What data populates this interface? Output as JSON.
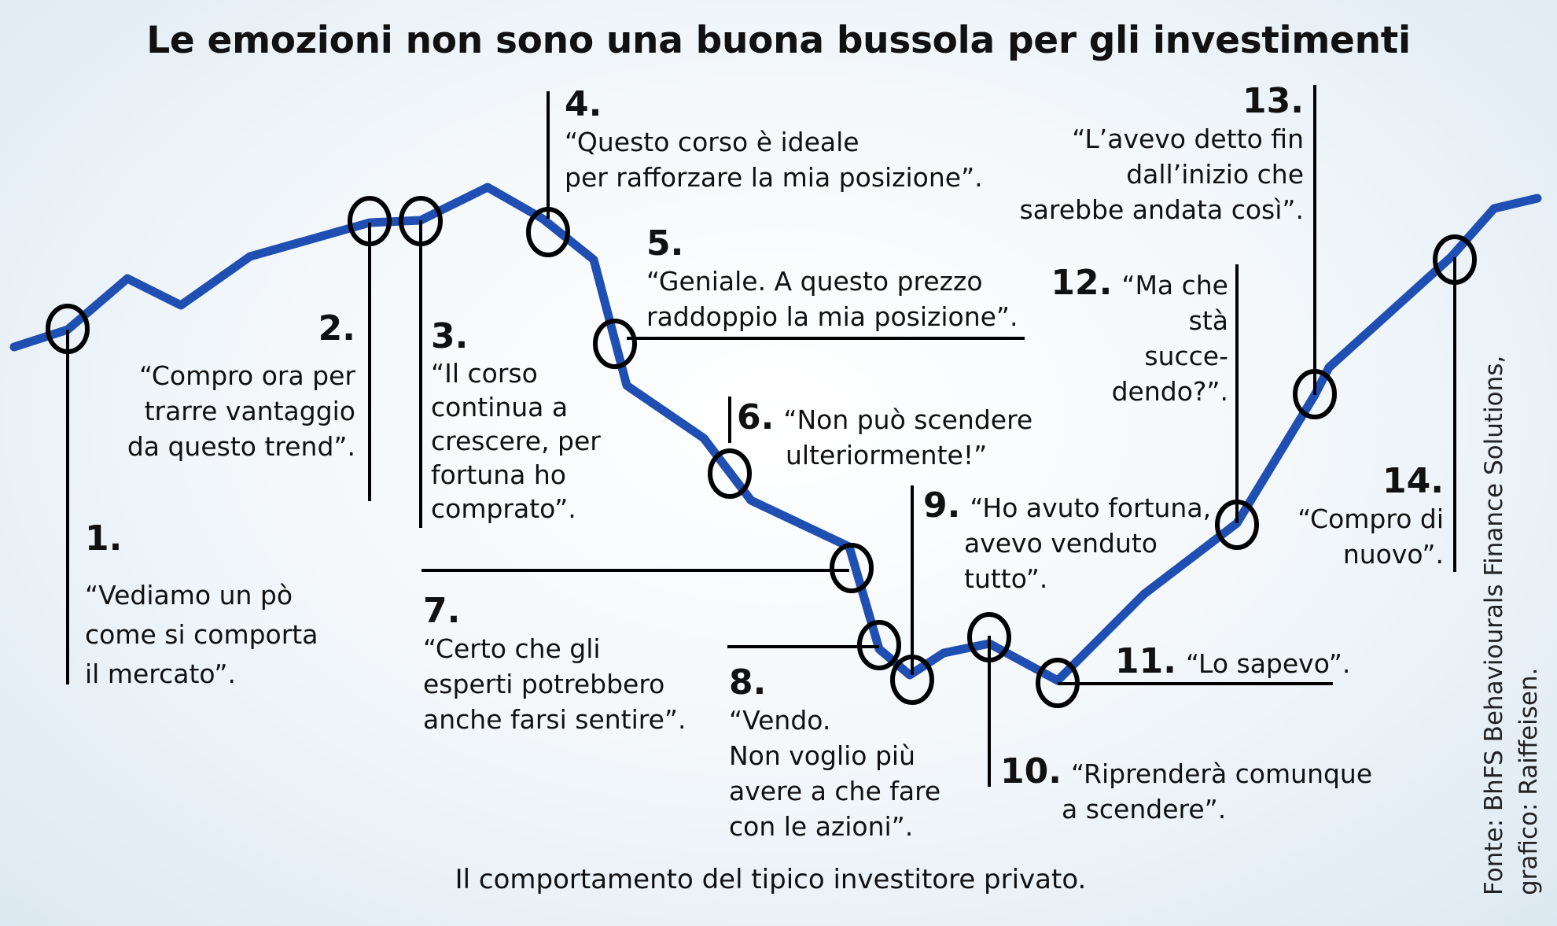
{
  "title": "Le emozioni non sono una buona bussola per gli investimenti",
  "subtitle": "Il comportamento del tipico investitore privato.",
  "source": [
    "Fonte: BhFS Behaviourals Finance Solutions,",
    "grafico: Raiffeisen."
  ],
  "colors": {
    "curve": "#1f4fb2",
    "marker": "#000000",
    "text": "#111111"
  },
  "annotations": [
    {
      "number": "1.",
      "quote": [
        "“Vediamo un pò",
        "come si comporta",
        "il mercato”."
      ]
    },
    {
      "number": "2.",
      "quote": [
        "“Compro ora per",
        "trarre vantaggio",
        "da questo trend”."
      ]
    },
    {
      "number": "3.",
      "quote": [
        "“Il corso",
        "continua a",
        "crescere, per",
        "fortuna ho",
        "comprato”."
      ]
    },
    {
      "number": "4.",
      "quote": [
        "“Questo corso è ideale",
        "per rafforzare la mia posizione”."
      ]
    },
    {
      "number": "5.",
      "quote": [
        "“Geniale. A questo prezzo",
        "raddoppio la mia posizione”."
      ]
    },
    {
      "number": "6.",
      "quote": [
        "“Non può scendere",
        "ulteriormente!”"
      ]
    },
    {
      "number": "7.",
      "quote": [
        "“Certo che gli",
        "esperti potrebbero",
        "anche farsi sentire”."
      ]
    },
    {
      "number": "8.",
      "quote": [
        "“Vendo.",
        "Non voglio più",
        "avere a che fare",
        "con le azioni”."
      ]
    },
    {
      "number": "9.",
      "quote": [
        "“Ho avuto fortuna,",
        "avevo venduto",
        "tutto”."
      ]
    },
    {
      "number": "10.",
      "quote": [
        "“Riprenderà comunque",
        "a scendere”."
      ]
    },
    {
      "number": "11.",
      "quote": [
        "“Lo sapevo”."
      ]
    },
    {
      "number": "12.",
      "quote": [
        "“Ma che",
        "stà",
        "succe-",
        "dendo?”."
      ]
    },
    {
      "number": "13.",
      "quote": [
        "“L’avevo detto fin",
        "dall’inizio che",
        "sarebbe andata così”."
      ]
    },
    {
      "number": "14.",
      "quote": [
        "“Compro di",
        "nuovo”."
      ]
    }
  ]
}
